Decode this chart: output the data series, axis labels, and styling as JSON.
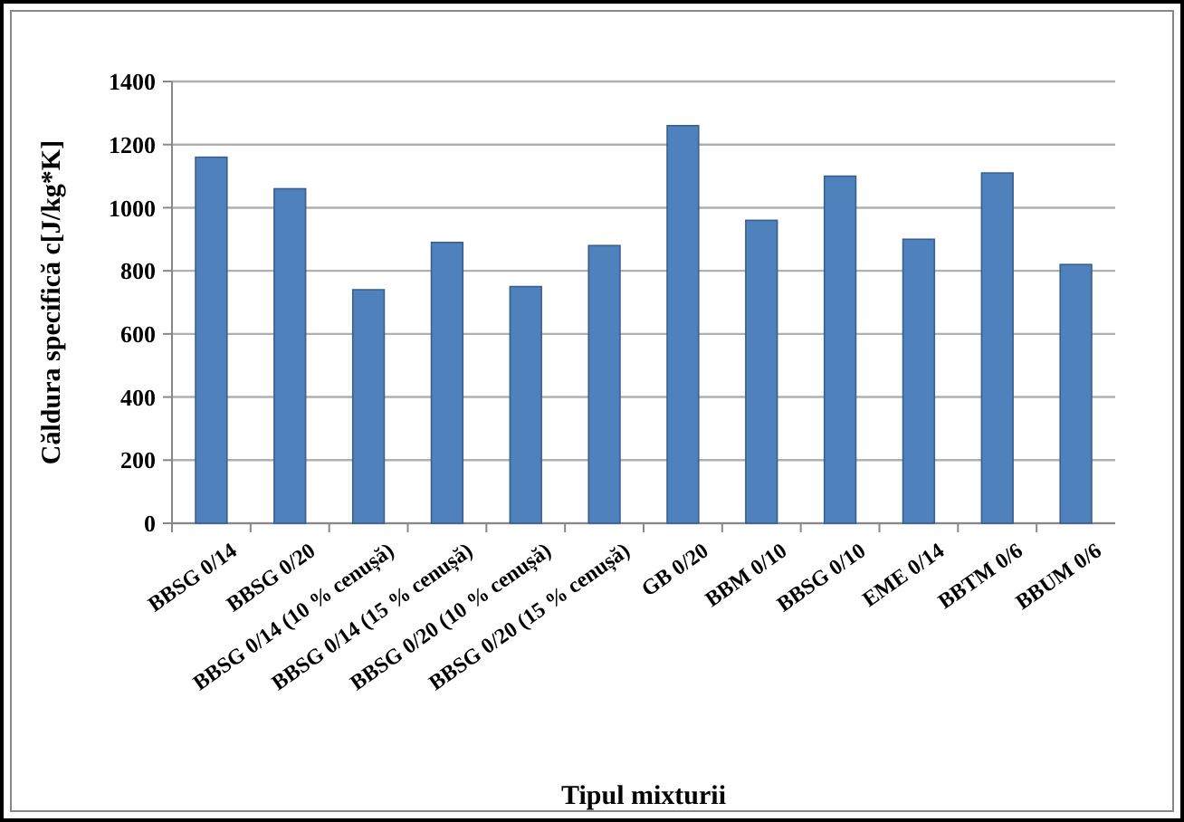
{
  "chart_data": {
    "type": "bar",
    "xlabel": "Tipul mixturii",
    "ylabel": "Căldura specifică  c[J/kg*K]",
    "categories": [
      "BBSG 0/14",
      "BBSG 0/20",
      "BBSG 0/14 (10 % cenușă)",
      "BBSG 0/14 (15 % cenușă)",
      "BBSG 0/20 (10 % cenușă)",
      "BBSG 0/20 (15 % cenușă)",
      "GB 0/20",
      "BBM 0/10",
      "BBSG 0/10",
      "EME 0/14",
      "BBTM 0/6",
      "BBUM 0/6"
    ],
    "values": [
      1160,
      1060,
      740,
      890,
      750,
      880,
      1260,
      960,
      1100,
      900,
      1110,
      820
    ],
    "color": "#4f81bd",
    "ylim": [
      0,
      1400
    ],
    "yticks": [
      0,
      200,
      400,
      600,
      800,
      1000,
      1200,
      1400
    ],
    "grid": "y"
  }
}
